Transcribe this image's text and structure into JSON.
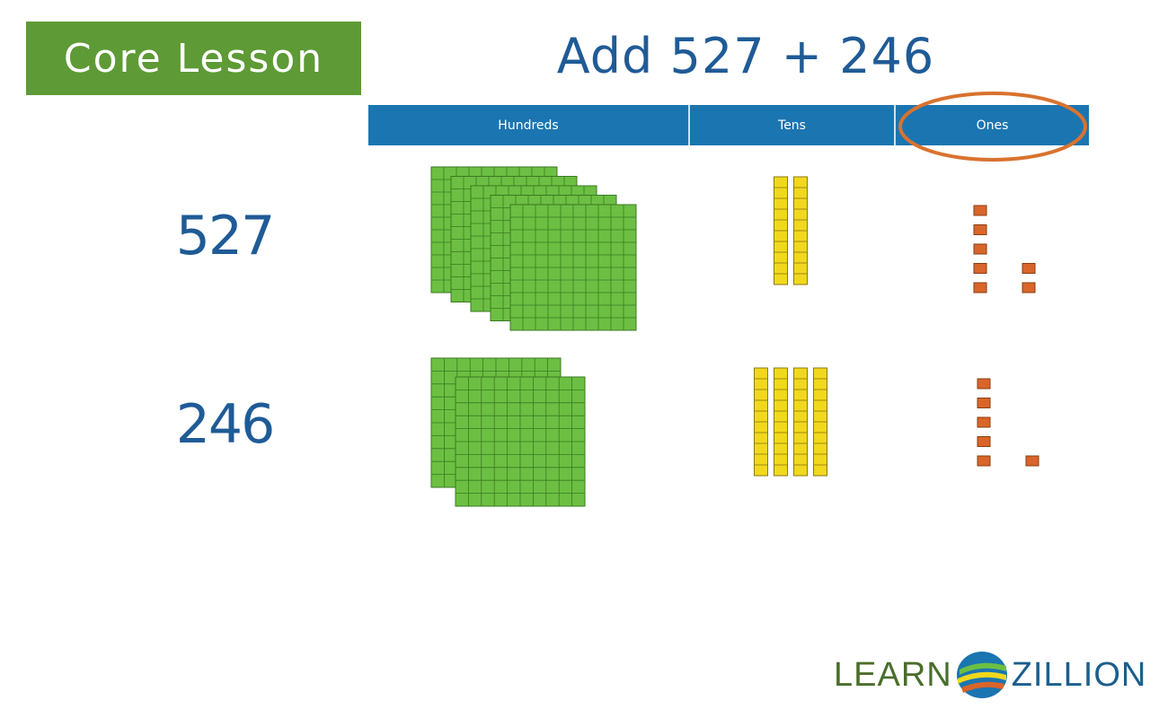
{
  "badge": {
    "label": "Core Lesson",
    "color": "#5e9a35"
  },
  "title": "Add 527 + 246",
  "table": {
    "headers": [
      "Hundreds",
      "Tens",
      "Ones"
    ],
    "highlighted_column": "Ones"
  },
  "rows": [
    {
      "number": "527",
      "hundreds": 5,
      "tens": 2,
      "ones": 7
    },
    {
      "number": "246",
      "hundreds": 2,
      "tens": 4,
      "ones": 6
    }
  ],
  "colors": {
    "hundreds": "#6cbf43",
    "tens": "#f2d81c",
    "ones": "#d9652a",
    "header": "#1b75b0",
    "highlight_ring": "#d9722f",
    "ink": "#1f5b96"
  },
  "logo": {
    "left": "LEARN",
    "right": "ZILLION",
    "icon": "learnzillion-swoosh-icon"
  }
}
